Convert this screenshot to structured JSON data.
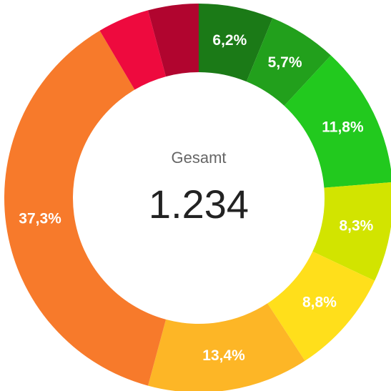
{
  "chart_data": {
    "type": "donut",
    "categories": [
      null,
      null,
      null,
      null,
      null,
      null,
      null,
      null,
      null
    ],
    "values": [
      6.2,
      5.7,
      11.8,
      8.3,
      8.8,
      13.4,
      37.3,
      4.3,
      4.2
    ],
    "value_labels": [
      "6,2%",
      "5,7%",
      "11,8%",
      "8,3%",
      "8,8%",
      "13,4%",
      "37,3%",
      null,
      null
    ],
    "colors": [
      "#1b7a17",
      "#22a01c",
      "#22c91e",
      "#d2e400",
      "#ffdf1b",
      "#fdb626",
      "#f77a2b",
      "#ee0a3e",
      "#b1052f"
    ],
    "center_title": "Gesamt",
    "center_text": "1.234"
  }
}
